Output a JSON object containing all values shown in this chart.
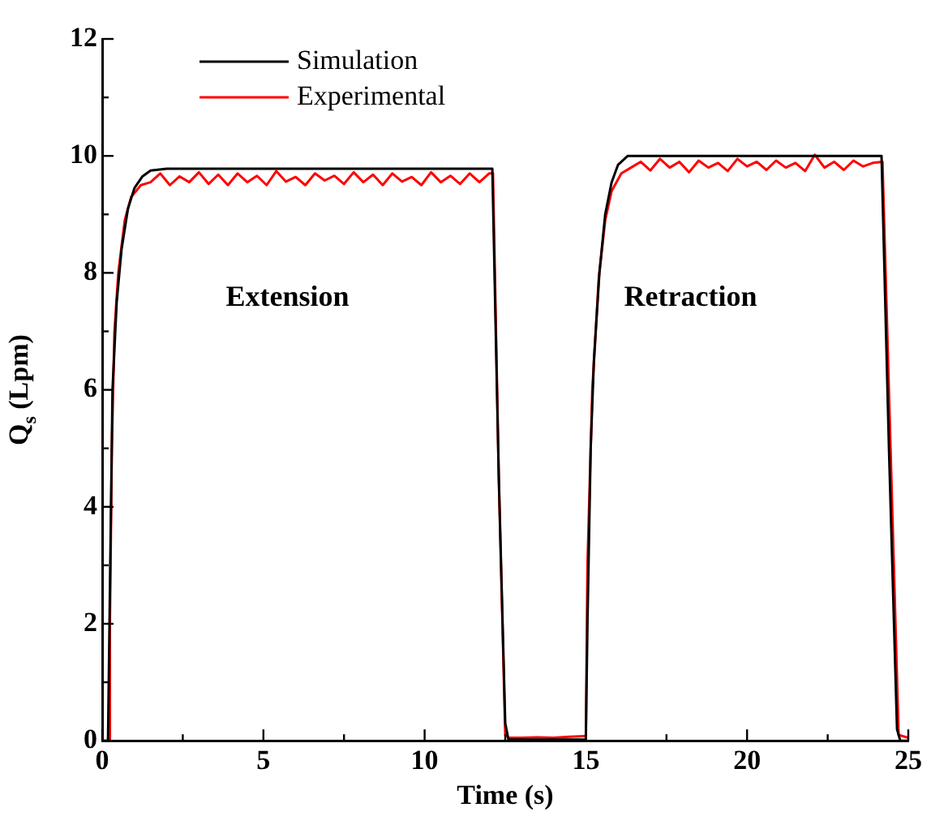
{
  "chart_data": {
    "type": "line",
    "xlabel": "Time (s)",
    "ylabel": "Q$_{s}$ (Lpm)",
    "xlim": [
      0,
      25
    ],
    "xticks": [
      0,
      {
        "value": 2.5,
        "label": null
      },
      5,
      {
        "value": 7.5,
        "label": null
      },
      10,
      {
        "value": 12.5,
        "label": null
      },
      15,
      {
        "value": 17.5,
        "label": null
      },
      20,
      {
        "value": 22.5,
        "label": null
      },
      25
    ],
    "ylim": [
      0,
      12
    ],
    "yticks": [
      0,
      {
        "value": 1,
        "label": null
      },
      2,
      {
        "value": 3,
        "label": null
      },
      4,
      {
        "value": 5,
        "label": null
      },
      6,
      {
        "value": 7,
        "label": null
      },
      8,
      {
        "value": 9,
        "label": null
      },
      10,
      {
        "value": 11,
        "label": null
      },
      12
    ],
    "grid": false,
    "legend": "top",
    "line_style": "solid",
    "marker": "none",
    "annotations": [
      "Extension",
      "Retraction"
    ],
    "series": [
      {
        "name": "Simulation",
        "color": "#000000",
        "x": [
          0,
          0.18,
          0.25,
          0.32,
          0.45,
          0.6,
          0.8,
          1.0,
          1.25,
          1.5,
          2,
          12.1,
          12.3,
          12.5,
          12.6,
          15.0,
          15.05,
          15.15,
          15.25,
          15.42,
          15.6,
          15.8,
          16.0,
          16.3,
          24.17,
          24.4,
          24.65,
          24.75,
          25
        ],
        "values": [
          0,
          0,
          3,
          6,
          7.5,
          8.4,
          9.1,
          9.45,
          9.65,
          9.75,
          9.78,
          9.78,
          4.5,
          0.3,
          0.02,
          0.02,
          2,
          5,
          6.5,
          8,
          9,
          9.55,
          9.85,
          10.0,
          10.0,
          5,
          0.2,
          0,
          0
        ]
      },
      {
        "name": "Experimental",
        "color": "#ff0000",
        "x": [
          0,
          0.22,
          0.24,
          0.3,
          0.38,
          0.5,
          0.7,
          0.9,
          1.2,
          1.5,
          1.8,
          2.1,
          2.4,
          2.7,
          3.0,
          3.3,
          3.6,
          3.9,
          4.2,
          4.5,
          4.8,
          5.1,
          5.4,
          5.7,
          6.0,
          6.3,
          6.6,
          6.9,
          7.2,
          7.5,
          7.8,
          8.1,
          8.4,
          8.7,
          9.0,
          9.3,
          9.6,
          9.9,
          10.2,
          10.5,
          10.8,
          11.1,
          11.4,
          11.7,
          12.0,
          12.12,
          12.3,
          12.5,
          12.6,
          13.0,
          13.5,
          14.0,
          14.5,
          14.95,
          15.0,
          15.05,
          15.2,
          15.4,
          15.6,
          15.8,
          16.1,
          16.4,
          16.7,
          17.0,
          17.3,
          17.6,
          17.9,
          18.2,
          18.5,
          18.8,
          19.1,
          19.4,
          19.7,
          20.0,
          20.3,
          20.6,
          20.9,
          21.2,
          21.5,
          21.8,
          22.1,
          22.4,
          22.7,
          23.0,
          23.3,
          23.6,
          23.9,
          24.2,
          24.45,
          24.7,
          25
        ],
        "values": [
          0,
          0,
          2,
          5,
          7,
          8,
          8.9,
          9.3,
          9.5,
          9.55,
          9.7,
          9.5,
          9.65,
          9.55,
          9.72,
          9.52,
          9.68,
          9.5,
          9.7,
          9.55,
          9.66,
          9.5,
          9.74,
          9.56,
          9.64,
          9.5,
          9.7,
          9.58,
          9.66,
          9.52,
          9.72,
          9.55,
          9.68,
          9.5,
          9.7,
          9.56,
          9.64,
          9.5,
          9.72,
          9.55,
          9.66,
          9.52,
          9.7,
          9.55,
          9.7,
          9.7,
          4.5,
          0.1,
          0.05,
          0.05,
          0.06,
          0.05,
          0.07,
          0.08,
          0.08,
          3,
          6,
          7.9,
          8.9,
          9.4,
          9.7,
          9.8,
          9.9,
          9.75,
          9.95,
          9.8,
          9.9,
          9.72,
          9.92,
          9.8,
          9.88,
          9.74,
          9.95,
          9.82,
          9.9,
          9.76,
          9.92,
          9.8,
          9.88,
          9.74,
          10.02,
          9.8,
          9.9,
          9.76,
          9.92,
          9.82,
          9.88,
          9.9,
          5,
          0.1,
          0.05
        ]
      }
    ]
  }
}
